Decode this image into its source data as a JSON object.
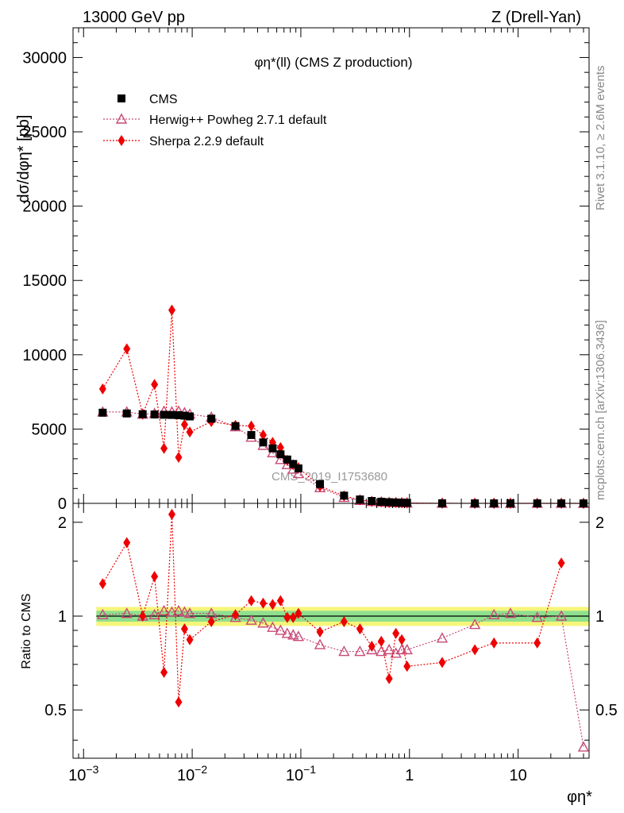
{
  "header": {
    "left": "13000 GeV pp",
    "right": "Z (Drell-Yan)"
  },
  "side_labels": {
    "rivet": "Rivet 3.1.10, ≥ 2.6M events",
    "mcplots": "mcplots.cern.ch [arXiv:1306.3436]"
  },
  "watermark": "CMS_2019_I1753680",
  "colors": {
    "data": "#000000",
    "herwig": "#c84a78",
    "sherpa": "#ee0000",
    "band_inner": "#8ee08e",
    "band_outer": "#f5f57a"
  },
  "chart_data": [
    {
      "type": "line",
      "panel": "main",
      "title": "φη*(ll) (CMS Z production)",
      "ylabel": "dσ/dφη* [pb]",
      "xlabel": "",
      "xscale": "log",
      "xlim": [
        0.0008,
        45
      ],
      "ylim": [
        0,
        32000
      ],
      "yticks": [
        5000,
        10000,
        15000,
        20000,
        25000,
        30000
      ],
      "ytick_labels": [
        "5000",
        "10000",
        "15000",
        "20000",
        "25000",
        "30000"
      ],
      "legend_position": "top-left",
      "legend": [
        "CMS",
        "Herwig++ Powheg 2.7.1 default",
        "Sherpa 2.2.9 default"
      ],
      "series": [
        {
          "name": "CMS",
          "marker": "square",
          "x": [
            0.0015,
            0.0025,
            0.0035,
            0.0045,
            0.0055,
            0.0065,
            0.0075,
            0.0085,
            0.0095,
            0.015,
            0.025,
            0.035,
            0.045,
            0.055,
            0.065,
            0.075,
            0.085,
            0.095,
            0.15,
            0.25,
            0.35,
            0.45,
            0.55,
            0.65,
            0.75,
            0.85,
            0.95,
            2,
            4,
            6,
            8.5,
            15,
            25,
            40
          ],
          "y": [
            6100,
            6050,
            6000,
            5980,
            5960,
            5950,
            5930,
            5900,
            5850,
            5700,
            5200,
            4600,
            4100,
            3700,
            3300,
            2950,
            2650,
            2350,
            1300,
            520,
            260,
            160,
            110,
            80,
            60,
            45,
            35,
            8,
            3,
            2,
            1.5,
            1,
            0.7,
            0.5
          ]
        },
        {
          "name": "Herwig++ Powheg 2.7.1 default",
          "marker": "open-triangle",
          "x": [
            0.0015,
            0.0025,
            0.0035,
            0.0045,
            0.0055,
            0.0065,
            0.0075,
            0.0085,
            0.0095,
            0.015,
            0.025,
            0.035,
            0.045,
            0.055,
            0.065,
            0.075,
            0.085,
            0.095,
            0.15,
            0.25,
            0.35,
            0.45,
            0.55,
            0.65,
            0.75,
            0.85,
            0.95,
            2,
            4,
            6,
            8.5,
            15,
            25,
            40
          ],
          "y": [
            6150,
            6150,
            6000,
            6050,
            6200,
            6150,
            6200,
            6100,
            6000,
            5800,
            5150,
            4450,
            3900,
            3400,
            2950,
            2600,
            2300,
            2000,
            1050,
            400,
            200,
            125,
            85,
            62,
            45,
            35,
            27,
            7,
            2.8,
            2,
            1.5,
            1,
            0.7,
            0.2
          ]
        },
        {
          "name": "Sherpa 2.2.9 default",
          "marker": "diamond",
          "x": [
            0.0015,
            0.0025,
            0.0035,
            0.0045,
            0.0055,
            0.0065,
            0.0075,
            0.0085,
            0.0095,
            0.015,
            0.025,
            0.035,
            0.045,
            0.055,
            0.065,
            0.075,
            0.085,
            0.095,
            0.15,
            0.25,
            0.35,
            0.45,
            0.55,
            0.65,
            0.75,
            0.85,
            0.95,
            2,
            4,
            6,
            8.5,
            15,
            25,
            40
          ],
          "y": [
            7700,
            10400,
            6000,
            8000,
            3700,
            13000,
            3100,
            5300,
            4800,
            5500,
            5250,
            5200,
            4600,
            4100,
            3750,
            2900,
            2600,
            2400,
            1150,
            500,
            240,
            130,
            92,
            50,
            53,
            38,
            24,
            5.7,
            2.4,
            1.7,
            1.2,
            0.8,
            1,
            0.3
          ]
        }
      ]
    },
    {
      "type": "line",
      "panel": "ratio",
      "ylabel": "Ratio to CMS",
      "xlabel": "φη*",
      "xscale": "log",
      "xlim": [
        0.0008,
        45
      ],
      "ylim": [
        0.35,
        2.3
      ],
      "yticks": [
        0.5,
        1,
        2
      ],
      "ytick_labels": [
        "0.5",
        "1",
        "2"
      ],
      "xticks": [
        0.001,
        0.01,
        0.1,
        1,
        10
      ],
      "xtick_labels": [
        "10−3",
        "10−2",
        "10−1",
        "1",
        "10"
      ],
      "band_inner": [
        0.96,
        1.04
      ],
      "band_outer": [
        0.93,
        1.07
      ],
      "series": [
        {
          "name": "Herwig++ Powheg 2.7.1 default",
          "x": [
            0.0015,
            0.0025,
            0.0035,
            0.0045,
            0.0055,
            0.0065,
            0.0075,
            0.0085,
            0.0095,
            0.015,
            0.025,
            0.035,
            0.045,
            0.055,
            0.065,
            0.075,
            0.085,
            0.095,
            0.15,
            0.25,
            0.35,
            0.45,
            0.55,
            0.65,
            0.75,
            0.85,
            0.95,
            2,
            4,
            6,
            8.5,
            15,
            25,
            40
          ],
          "y": [
            1.01,
            1.02,
            1.0,
            1.01,
            1.04,
            1.03,
            1.04,
            1.03,
            1.02,
            1.02,
            0.99,
            0.97,
            0.95,
            0.92,
            0.9,
            0.88,
            0.87,
            0.86,
            0.81,
            0.77,
            0.77,
            0.78,
            0.77,
            0.78,
            0.76,
            0.78,
            0.78,
            0.85,
            0.94,
            1.01,
            1.02,
            0.99,
            1.0,
            0.38
          ]
        },
        {
          "name": "Sherpa 2.2.9 default",
          "x": [
            0.0015,
            0.0025,
            0.0035,
            0.0045,
            0.0055,
            0.0065,
            0.0075,
            0.0085,
            0.0095,
            0.015,
            0.025,
            0.035,
            0.045,
            0.055,
            0.065,
            0.075,
            0.085,
            0.095,
            0.15,
            0.25,
            0.35,
            0.45,
            0.55,
            0.65,
            0.75,
            0.85,
            0.95,
            2,
            4,
            6,
            8.5,
            15,
            25,
            40
          ],
          "y": [
            1.27,
            1.72,
            1.0,
            1.34,
            0.66,
            2.12,
            0.53,
            0.91,
            0.84,
            0.96,
            1.01,
            1.12,
            1.1,
            1.09,
            1.12,
            0.99,
            0.99,
            1.02,
            0.89,
            0.96,
            0.91,
            0.8,
            0.83,
            0.63,
            0.88,
            0.84,
            0.69,
            0.71,
            0.78,
            0.82,
            null,
            0.82,
            1.48,
            null
          ]
        }
      ]
    }
  ]
}
